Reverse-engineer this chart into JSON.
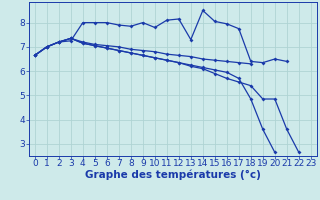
{
  "background_color": "#ceeaea",
  "grid_color": "#afd4d4",
  "line_color": "#1a3aaa",
  "xlabel": "Graphe des températures (°c)",
  "xlabel_fontsize": 7.5,
  "tick_fontsize": 6.5,
  "xlim": [
    -0.5,
    23.5
  ],
  "ylim": [
    2.5,
    8.85
  ],
  "yticks": [
    3,
    4,
    5,
    6,
    7,
    8
  ],
  "xticks": [
    0,
    1,
    2,
    3,
    4,
    5,
    6,
    7,
    8,
    9,
    10,
    11,
    12,
    13,
    14,
    15,
    16,
    17,
    18,
    19,
    20,
    21,
    22,
    23
  ],
  "series": [
    [
      6.65,
      7.0,
      7.2,
      7.25,
      8.0,
      8.0,
      8.0,
      7.9,
      7.85,
      8.0,
      7.8,
      8.1,
      8.15,
      7.3,
      8.5,
      8.05,
      7.95,
      7.75,
      6.4,
      6.35,
      6.5,
      6.4,
      null,
      null
    ],
    [
      6.65,
      7.0,
      7.2,
      7.35,
      7.2,
      7.1,
      7.05,
      7.0,
      6.9,
      6.85,
      6.8,
      6.7,
      6.65,
      6.6,
      6.5,
      6.45,
      6.4,
      6.35,
      6.3,
      null,
      null,
      null,
      null,
      null
    ],
    [
      6.65,
      7.0,
      7.2,
      7.35,
      7.15,
      7.05,
      6.95,
      6.85,
      6.75,
      6.65,
      6.55,
      6.45,
      6.35,
      6.25,
      6.15,
      6.05,
      5.95,
      5.7,
      4.85,
      3.6,
      2.65,
      null,
      null,
      null
    ],
    [
      6.65,
      7.0,
      7.2,
      7.35,
      7.15,
      7.05,
      6.95,
      6.85,
      6.75,
      6.65,
      6.55,
      6.45,
      6.35,
      6.2,
      6.1,
      5.9,
      5.7,
      5.55,
      5.4,
      4.85,
      4.85,
      3.6,
      2.65,
      null
    ]
  ]
}
